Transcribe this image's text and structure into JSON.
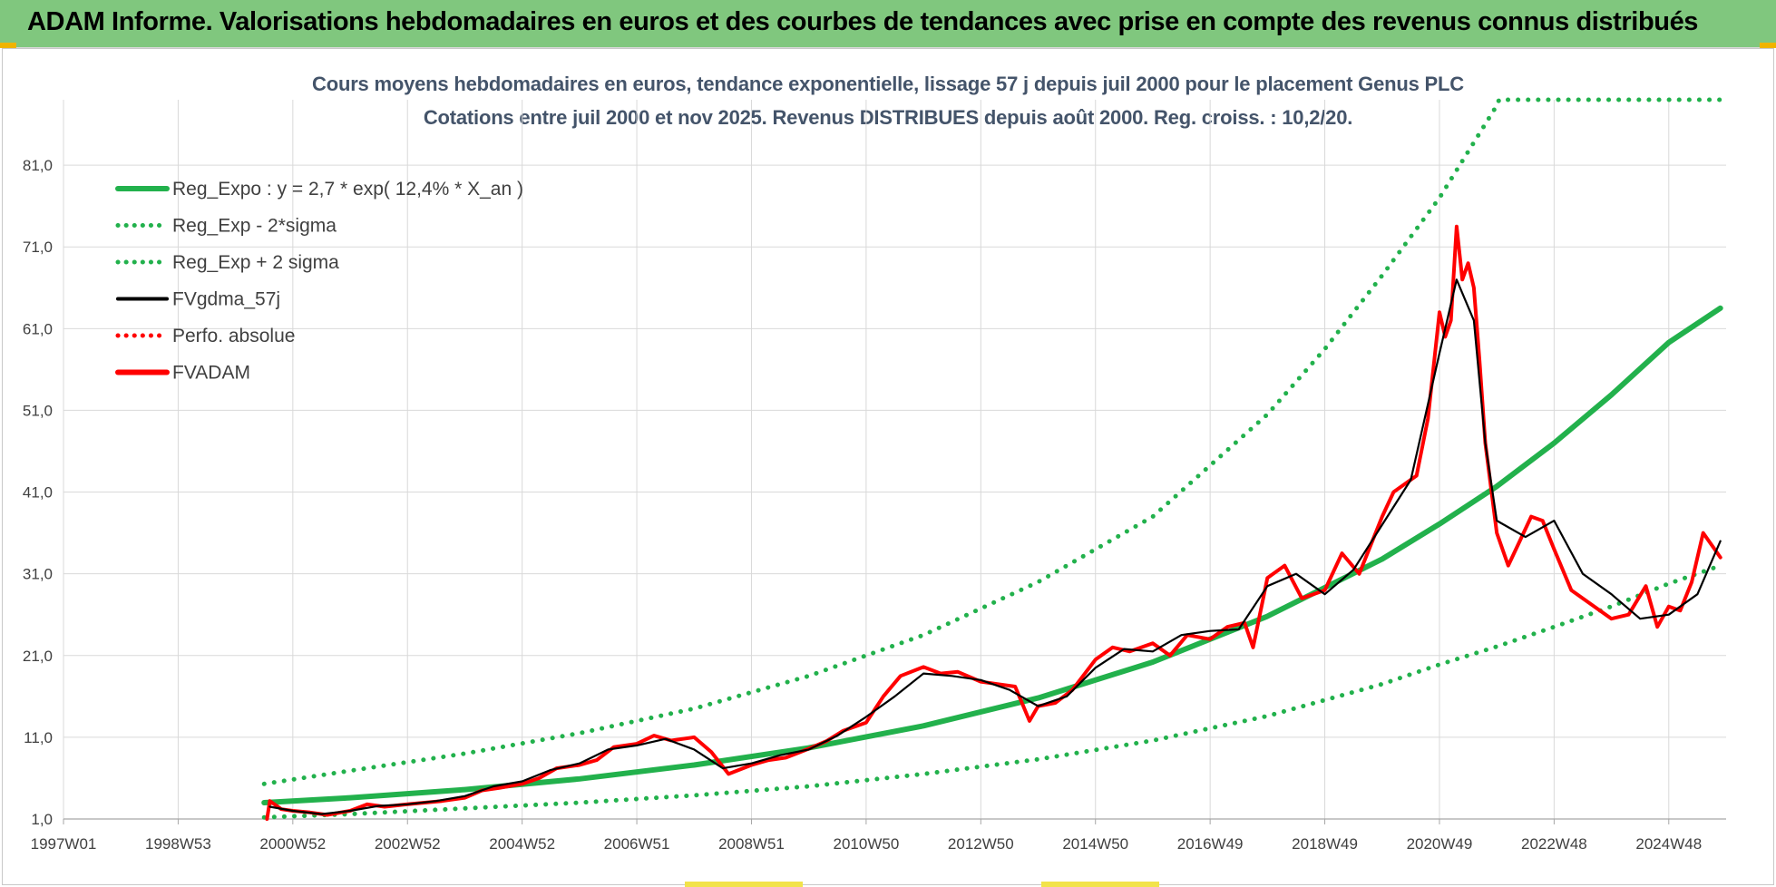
{
  "header": {
    "title": "ADAM Informe. Valorisations hebdomadaires en euros et des courbes de tendances avec prise en compte des revenus connus distribués"
  },
  "colors": {
    "header_bg": "#80c77e",
    "trend_green": "#22b14c",
    "price_red": "#ff0000",
    "smooth_black": "#000000",
    "title_text": "#44546a"
  },
  "chart_data": {
    "type": "line",
    "title": "Cours moyens hebdomadaires en euros, tendance exponentielle, lissage 57 j depuis juil 2000 pour le placement Genus PLC",
    "subtitle": "Cotations entre juil 2000 et nov 2025. Revenus DISTRIBUES depuis août 2000. Reg. croiss. : 10,2/20.",
    "xlabel": "",
    "ylabel": "",
    "xlim": [
      1997.0,
      2026.0
    ],
    "ylim": [
      1.0,
      89.0
    ],
    "y_ticks": [
      1.0,
      11.0,
      21.0,
      31.0,
      41.0,
      51.0,
      61.0,
      71.0,
      81.0
    ],
    "y_tick_labels": [
      "1,0",
      "11,0",
      "21,0",
      "31,0",
      "41,0",
      "51,0",
      "61,0",
      "71,0",
      "81,0"
    ],
    "x_ticks": [
      1997.0,
      1999.0,
      2001.0,
      2003.0,
      2005.0,
      2007.0,
      2009.0,
      2011.0,
      2013.0,
      2015.0,
      2017.0,
      2019.0,
      2021.0,
      2023.0,
      2025.0
    ],
    "x_tick_labels": [
      "1997W01",
      "1998W53",
      "2000W52",
      "2002W52",
      "2004W52",
      "2006W51",
      "2008W51",
      "2010W50",
      "2012W50",
      "2014W50",
      "2016W49",
      "2018W49",
      "2020W49",
      "2022W48",
      "2024W48"
    ],
    "grid": true,
    "legend_position": "top-left",
    "legend": [
      {
        "label": "Reg_Expo : y = 2,7 * exp( 12,4% *  X_an )",
        "color": "#22b14c",
        "style": "solid-thick"
      },
      {
        "label": "Reg_Exp - 2*sigma",
        "color": "#22b14c",
        "style": "dotted"
      },
      {
        "label": "Reg_Exp + 2 sigma",
        "color": "#22b14c",
        "style": "dotted"
      },
      {
        "label": "FVgdma_57j",
        "color": "#000000",
        "style": "solid-thin"
      },
      {
        "label": "Perfo. absolue",
        "color": "#ff0000",
        "style": "dotted"
      },
      {
        "label": "FVADAM",
        "color": "#ff0000",
        "style": "solid-thick"
      }
    ],
    "series": [
      {
        "name": "Reg_Expo : y = 2,7 * exp( 12,4% *  X_an )",
        "style": "solid-thick",
        "color": "#22b14c",
        "x": [
          2000.5,
          2002.0,
          2004.0,
          2006.0,
          2008.0,
          2010.0,
          2012.0,
          2014.0,
          2016.0,
          2018.0,
          2020.0,
          2021.0,
          2022.0,
          2023.0,
          2024.0,
          2025.0,
          2025.9
        ],
        "y": [
          3.0,
          3.6,
          4.6,
          5.9,
          7.6,
          9.7,
          12.4,
          15.8,
          20.2,
          25.8,
          32.8,
          37.1,
          41.7,
          47.0,
          52.9,
          59.3,
          63.5
        ]
      },
      {
        "name": "Reg_Exp - 2*sigma",
        "style": "dotted",
        "color": "#22b14c",
        "x": [
          2000.5,
          2002.0,
          2004.0,
          2006.0,
          2008.0,
          2010.0,
          2012.0,
          2014.0,
          2016.0,
          2018.0,
          2020.0,
          2021.0,
          2022.0,
          2023.0,
          2024.0,
          2025.0,
          2025.9
        ],
        "y": [
          1.2,
          1.6,
          2.3,
          3.0,
          3.9,
          5.0,
          6.5,
          8.3,
          10.6,
          13.6,
          17.5,
          19.9,
          22.1,
          24.5,
          27.0,
          29.8,
          32.0
        ]
      },
      {
        "name": "Reg_Exp + 2 sigma",
        "style": "dotted",
        "color": "#22b14c",
        "x": [
          2000.5,
          2002.0,
          2004.0,
          2006.0,
          2008.0,
          2010.0,
          2012.0,
          2014.0,
          2016.0,
          2018.0,
          2019.0,
          2020.0,
          2021.0,
          2022.0,
          2022.04,
          2025.9
        ],
        "y": [
          5.3,
          6.9,
          9.0,
          11.5,
          14.5,
          18.5,
          23.5,
          30.0,
          38.0,
          50.5,
          58.5,
          67.5,
          77.0,
          88.3,
          89.0,
          89.0
        ]
      },
      {
        "name": "FVgdma_57j",
        "style": "solid-thin",
        "color": "#000000",
        "x": [
          2000.6,
          2001.0,
          2001.5,
          2002.0,
          2002.5,
          2003.0,
          2003.5,
          2004.0,
          2004.5,
          2005.0,
          2005.5,
          2006.0,
          2006.5,
          2007.0,
          2007.5,
          2008.0,
          2008.5,
          2009.0,
          2009.5,
          2010.0,
          2010.5,
          2011.0,
          2011.5,
          2012.0,
          2012.5,
          2013.0,
          2013.5,
          2014.0,
          2014.5,
          2015.0,
          2015.5,
          2016.0,
          2016.5,
          2017.0,
          2017.5,
          2018.0,
          2018.5,
          2019.0,
          2019.5,
          2020.0,
          2020.5,
          2021.0,
          2021.3,
          2021.6,
          2021.8,
          2022.0,
          2022.5,
          2023.0,
          2023.5,
          2024.0,
          2024.5,
          2025.0,
          2025.5,
          2025.9
        ],
        "y": [
          2.5,
          2.0,
          1.6,
          2.0,
          2.6,
          2.8,
          3.2,
          3.8,
          5.0,
          5.6,
          7.0,
          7.8,
          9.5,
          10.0,
          10.8,
          9.5,
          7.2,
          7.8,
          8.8,
          9.5,
          11.2,
          13.5,
          16.0,
          18.8,
          18.5,
          18.0,
          16.8,
          14.8,
          16.0,
          19.5,
          21.8,
          21.5,
          23.5,
          24.0,
          24.2,
          29.5,
          31.0,
          28.5,
          31.5,
          37.0,
          42.5,
          58.0,
          67.0,
          62.0,
          47.0,
          37.5,
          35.5,
          37.5,
          31.0,
          28.5,
          25.5,
          26.0,
          28.5,
          35.0
        ]
      },
      {
        "name": "FVADAM",
        "style": "solid-thick",
        "color": "#ff0000",
        "x": [
          2000.55,
          2000.6,
          2000.8,
          2001.0,
          2001.3,
          2001.6,
          2002.0,
          2002.3,
          2002.6,
          2003.0,
          2003.3,
          2003.6,
          2004.0,
          2004.3,
          2004.6,
          2005.0,
          2005.3,
          2005.6,
          2006.0,
          2006.3,
          2006.6,
          2007.0,
          2007.3,
          2007.6,
          2008.0,
          2008.3,
          2008.6,
          2009.0,
          2009.3,
          2009.6,
          2010.0,
          2010.3,
          2010.6,
          2011.0,
          2011.3,
          2011.6,
          2012.0,
          2012.3,
          2012.6,
          2013.0,
          2013.3,
          2013.6,
          2013.85,
          2014.0,
          2014.3,
          2014.6,
          2015.0,
          2015.3,
          2015.6,
          2016.0,
          2016.3,
          2016.6,
          2017.0,
          2017.3,
          2017.6,
          2017.75,
          2018.0,
          2018.3,
          2018.6,
          2019.0,
          2019.3,
          2019.6,
          2020.0,
          2020.2,
          2020.4,
          2020.6,
          2020.8,
          2021.0,
          2021.1,
          2021.2,
          2021.3,
          2021.4,
          2021.5,
          2021.6,
          2021.7,
          2021.8,
          2022.0,
          2022.2,
          2022.4,
          2022.6,
          2022.8,
          2023.0,
          2023.3,
          2023.6,
          2024.0,
          2024.3,
          2024.6,
          2024.8,
          2025.0,
          2025.2,
          2025.4,
          2025.6,
          2025.8,
          2025.9
        ],
        "y": [
          1.0,
          3.2,
          2.2,
          2.0,
          1.8,
          1.5,
          2.0,
          2.8,
          2.5,
          2.8,
          3.0,
          3.2,
          3.6,
          4.5,
          4.8,
          5.3,
          6.0,
          7.2,
          7.6,
          8.2,
          9.8,
          10.2,
          11.2,
          10.6,
          11.0,
          9.2,
          6.5,
          7.6,
          8.2,
          8.5,
          9.6,
          10.5,
          11.8,
          12.8,
          16.0,
          18.5,
          19.6,
          18.8,
          19.0,
          17.8,
          17.5,
          17.2,
          13.0,
          14.8,
          15.2,
          16.8,
          20.5,
          22.0,
          21.5,
          22.5,
          21.0,
          23.5,
          23.0,
          24.5,
          25.0,
          22.0,
          30.5,
          32.0,
          28.0,
          29.0,
          33.5,
          31.0,
          38.0,
          41.0,
          42.0,
          43.0,
          50.0,
          63.0,
          60.0,
          62.0,
          73.5,
          67.0,
          69.0,
          66.0,
          57.0,
          47.0,
          36.0,
          32.0,
          35.0,
          38.0,
          37.5,
          34.0,
          29.0,
          27.5,
          25.5,
          26.0,
          29.5,
          24.5,
          27.0,
          26.5,
          30.0,
          36.0,
          34.0,
          33.0
        ]
      }
    ]
  }
}
